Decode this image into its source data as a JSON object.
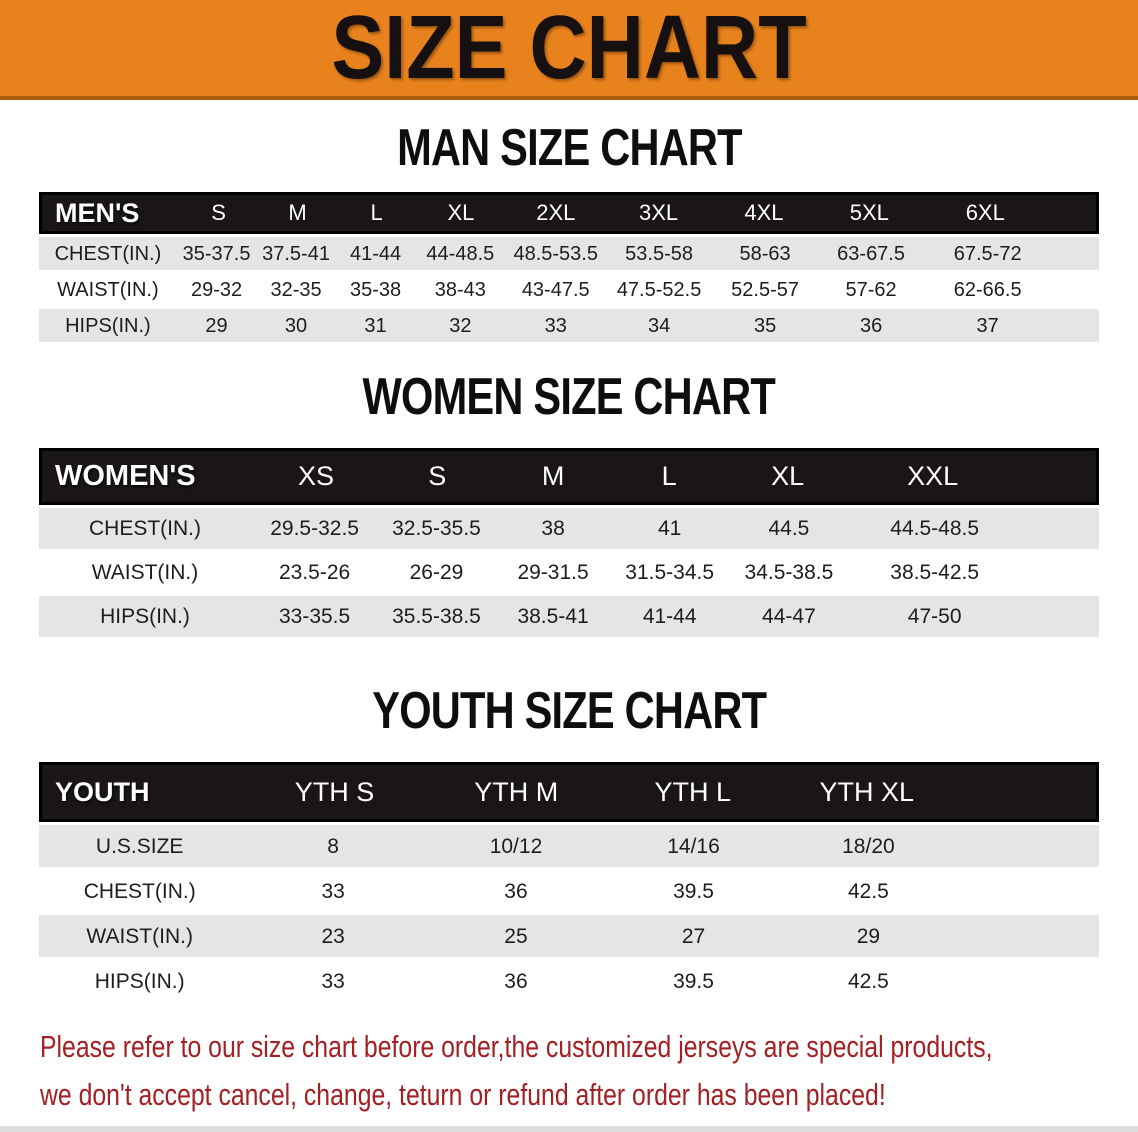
{
  "banner": {
    "title": "SIZE CHART"
  },
  "colors": {
    "banner_orange": "#e7821d",
    "header_black": "#1a1616",
    "row_gray": "#e5e5e5",
    "disclaimer_red": "#a32023"
  },
  "chart_data": [
    {
      "type": "table",
      "id": "men",
      "title": "MAN SIZE CHART",
      "row_header": "MEN'S",
      "columns": [
        "S",
        "M",
        "L",
        "XL",
        "2XL",
        "3XL",
        "4XL",
        "5XL",
        "6XL"
      ],
      "rows": [
        {
          "label": "CHEST(IN.)",
          "values": [
            "35-37.5",
            "37.5-41",
            "41-44",
            "44-48.5",
            "48.5-53.5",
            "53.5-58",
            "58-63",
            "63-67.5",
            "67.5-72"
          ]
        },
        {
          "label": "WAIST(IN.)",
          "values": [
            "29-32",
            "32-35",
            "35-38",
            "38-43",
            "43-47.5",
            "47.5-52.5",
            "52.5-57",
            "57-62",
            "62-66.5"
          ]
        },
        {
          "label": "HIPS(IN.)",
          "values": [
            "29",
            "30",
            "31",
            "32",
            "33",
            "34",
            "35",
            "36",
            "37"
          ]
        }
      ]
    },
    {
      "type": "table",
      "id": "women",
      "title": "WOMEN SIZE CHART",
      "row_header": "WOMEN'S",
      "columns": [
        "XS",
        "S",
        "M",
        "L",
        "XL",
        "XXL"
      ],
      "rows": [
        {
          "label": "CHEST(IN.)",
          "values": [
            "29.5-32.5",
            "32.5-35.5",
            "38",
            "41",
            "44.5",
            "44.5-48.5"
          ]
        },
        {
          "label": "WAIST(IN.)",
          "values": [
            "23.5-26",
            "26-29",
            "29-31.5",
            "31.5-34.5",
            "34.5-38.5",
            "38.5-42.5"
          ]
        },
        {
          "label": "HIPS(IN.)",
          "values": [
            "33-35.5",
            "35.5-38.5",
            "38.5-41",
            "41-44",
            "44-47",
            "47-50"
          ]
        }
      ]
    },
    {
      "type": "table",
      "id": "youth",
      "title": "YOUTH SIZE CHART",
      "row_header": "YOUTH",
      "columns": [
        "YTH S",
        "YTH M",
        "YTH L",
        "YTH XL"
      ],
      "rows": [
        {
          "label": "U.S.SIZE",
          "values": [
            "8",
            "10/12",
            "14/16",
            "18/20"
          ]
        },
        {
          "label": "CHEST(IN.)",
          "values": [
            "33",
            "36",
            "39.5",
            "42.5"
          ]
        },
        {
          "label": "WAIST(IN.)",
          "values": [
            "23",
            "25",
            "27",
            "29"
          ]
        },
        {
          "label": "HIPS(IN.)",
          "values": [
            "33",
            "36",
            "39.5",
            "42.5"
          ]
        }
      ]
    }
  ],
  "disclaimer": {
    "line1": "Please refer to our size chart before order,the customized jerseys are special products,",
    "line2": "we don't accept cancel, change, teturn or refund after order has been placed!"
  }
}
